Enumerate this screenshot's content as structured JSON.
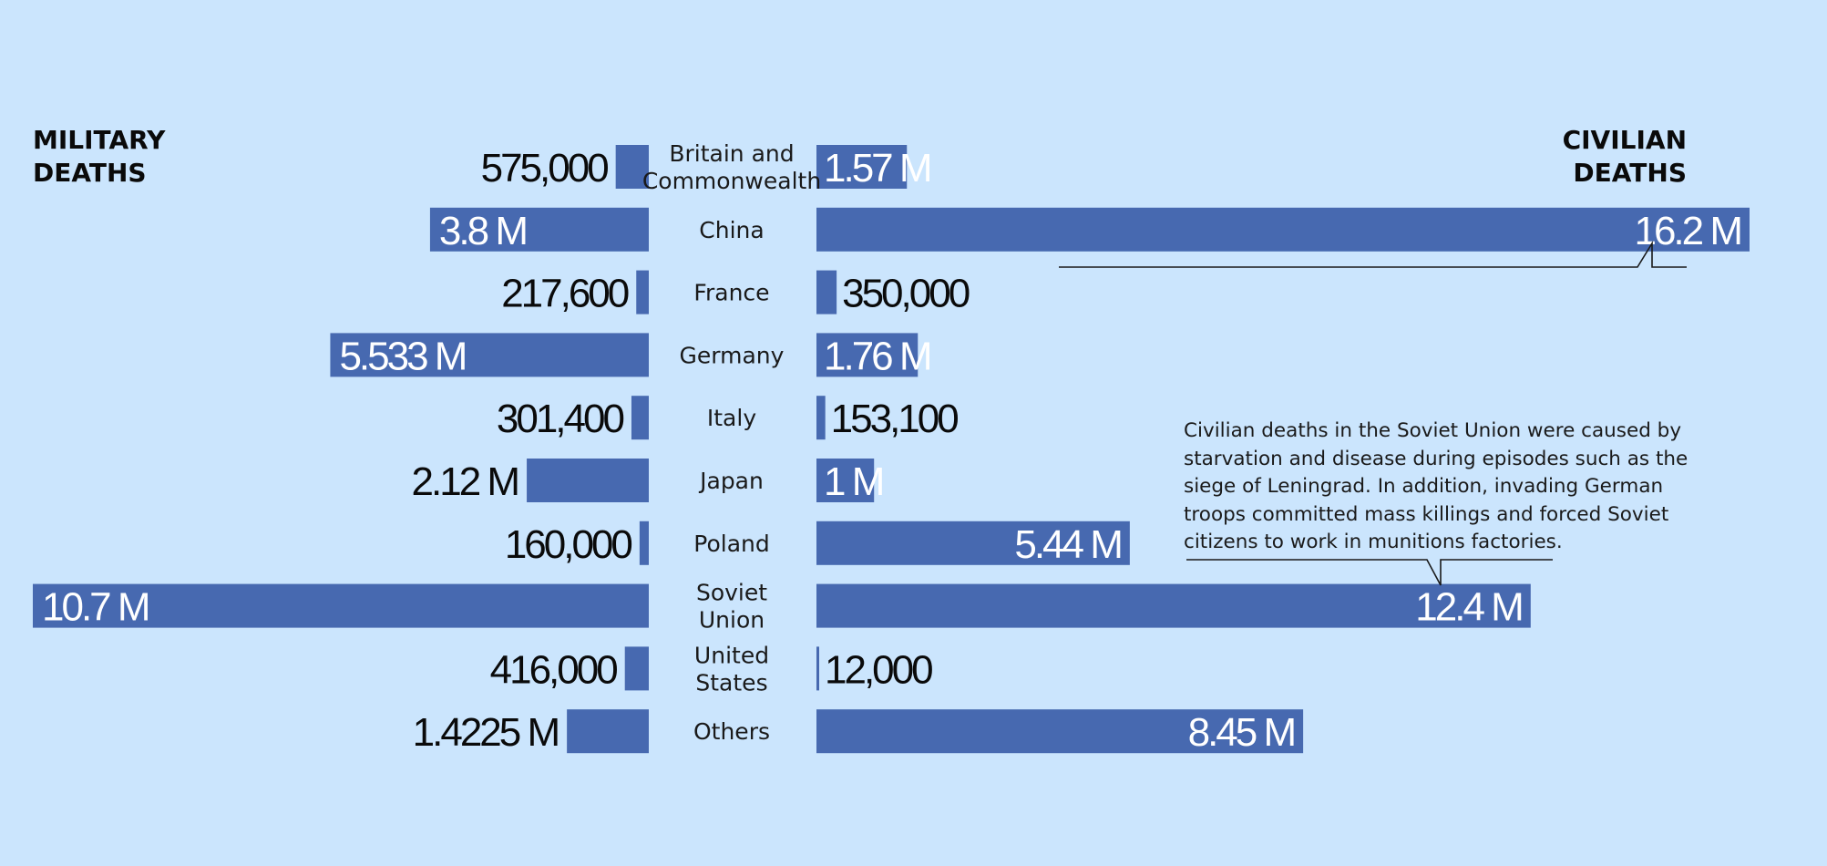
{
  "headers": {
    "military_line1": "MILITARY",
    "military_line2": "DEATHS",
    "civilian_line1": "CIVILIAN",
    "civilian_line2": "DEATHS"
  },
  "annotation": {
    "lines": [
      "Civilian deaths in the Soviet Union were caused by",
      "starvation and disease during episodes such as the",
      "siege of Leningrad. In addition, invading German",
      "troops committed mass killings and forced Soviet",
      "citizens to work in munitions factories."
    ]
  },
  "colors": {
    "background": "#cbe5fd",
    "bar": "#4769b0",
    "label_on_bar": "#ffffff",
    "label_off_bar": "#0a0a0a"
  },
  "chart_data": {
    "type": "bar",
    "orientation": "horizontal-diverging",
    "left_series": "Military deaths",
    "right_series": "Civilian deaths",
    "categories": [
      {
        "label": [
          "Britain and",
          "Commonwealth"
        ],
        "military": 575000,
        "military_label": "575,000",
        "civilian": 1570000,
        "civilian_label": "1.57 M"
      },
      {
        "label": [
          "China"
        ],
        "military": 3800000,
        "military_label": "3.8 M",
        "civilian": 16200000,
        "civilian_label": "16.2 M"
      },
      {
        "label": [
          "France"
        ],
        "military": 217600,
        "military_label": "217,600",
        "civilian": 350000,
        "civilian_label": "350,000"
      },
      {
        "label": [
          "Germany"
        ],
        "military": 5533000,
        "military_label": "5.533 M",
        "civilian": 1760000,
        "civilian_label": "1.76 M"
      },
      {
        "label": [
          "Italy"
        ],
        "military": 301400,
        "military_label": "301,400",
        "civilian": 153100,
        "civilian_label": "153,100"
      },
      {
        "label": [
          "Japan"
        ],
        "military": 2120000,
        "military_label": "2.12 M",
        "civilian": 1000000,
        "civilian_label": "1 M"
      },
      {
        "label": [
          "Poland"
        ],
        "military": 160000,
        "military_label": "160,000",
        "civilian": 5440000,
        "civilian_label": "5.44 M"
      },
      {
        "label": [
          "Soviet",
          "Union"
        ],
        "military": 10700000,
        "military_label": "10.7 M",
        "civilian": 12400000,
        "civilian_label": "12.4 M"
      },
      {
        "label": [
          "United",
          "States"
        ],
        "military": 416000,
        "military_label": "416,000",
        "civilian": 12000,
        "civilian_label": "12,000"
      },
      {
        "label": [
          "Others"
        ],
        "military": 1422500,
        "military_label": "1.4225 M",
        "civilian": 8450000,
        "civilian_label": "8.45 M"
      }
    ]
  }
}
